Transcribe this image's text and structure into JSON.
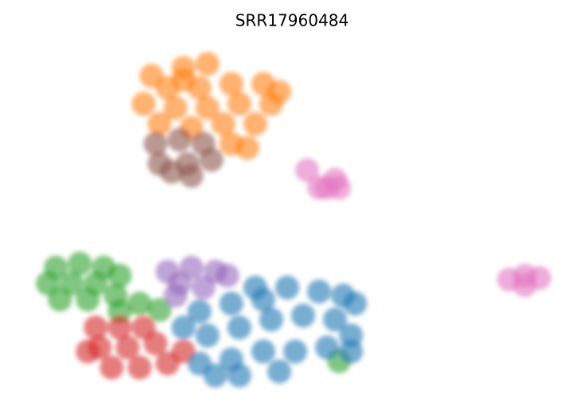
{
  "chart_data": {
    "type": "scatter",
    "title": "SRR17960484",
    "xlim": [
      4,
      70
    ],
    "ylim": [
      2.7,
      45.7
    ],
    "series": [
      {
        "color": "#ff7f0e",
        "x": [
          19,
          23,
          26,
          21,
          25,
          29,
          33,
          35,
          18,
          22,
          26,
          30,
          34,
          20,
          24,
          28,
          32,
          29,
          31,
          23
        ],
        "values": [
          42.2,
          43.2,
          43.7,
          40.7,
          40.7,
          41.2,
          41.2,
          40.2,
          38.7,
          38.2,
          38.2,
          38.7,
          38.7,
          36.2,
          35.7,
          36.2,
          36.2,
          33.7,
          33.2,
          41.7
        ]
      },
      {
        "color": "#8c564b",
        "x": [
          19.5,
          22.5,
          25.5,
          20,
          23.5,
          26.5,
          24,
          21.5
        ],
        "values": [
          33.7,
          34.2,
          33.7,
          31.2,
          31.2,
          31.7,
          29.7,
          30.2
        ]
      },
      {
        "color": "#e377c2",
        "x": [
          38.5,
          41,
          42.5,
          42,
          40,
          63.8,
          65.8,
          67.6,
          65.8
        ],
        "values": [
          30.4,
          28.2,
          28.2,
          29.2,
          28.2,
          16.7,
          17.2,
          16.9,
          16
        ]
      },
      {
        "color": "#2ca02c",
        "x": [
          7,
          10,
          13,
          6,
          9,
          12,
          15,
          7.5,
          11,
          14.5,
          17.5,
          20,
          15,
          42.5
        ],
        "values": [
          18.2,
          18.7,
          18.2,
          16.2,
          16.2,
          16.2,
          17.2,
          14.2,
          14.2,
          14.7,
          13.7,
          12.9,
          12.7,
          6.5
        ]
      },
      {
        "color": "#9467bd",
        "x": [
          21,
          24,
          27,
          28.5,
          22.5,
          25.5,
          22
        ],
        "values": [
          17.7,
          18.2,
          17.7,
          17.2,
          16.2,
          15.7,
          14.7
        ]
      },
      {
        "color": "#d62728",
        "x": [
          12,
          15,
          18,
          12.5,
          16,
          19.5,
          14,
          17.5,
          21,
          23,
          11
        ],
        "values": [
          10.7,
          10.7,
          10.7,
          8.2,
          8.2,
          8.7,
          5.7,
          5.7,
          6.2,
          7.7,
          7.7
        ]
      },
      {
        "color": "#1f77b4",
        "x": [
          25,
          29,
          33,
          36,
          40,
          43,
          44.5,
          26,
          30,
          34,
          38,
          42,
          44,
          25,
          29,
          33,
          37,
          41,
          30,
          35,
          23,
          27,
          44,
          32
        ],
        "values": [
          12.7,
          13.7,
          14.2,
          15.7,
          15.2,
          14.7,
          13.7,
          9.7,
          10.7,
          11.7,
          12.2,
          11.7,
          9.7,
          6.2,
          6.7,
          7.7,
          7.7,
          8.2,
          4.7,
          5.2,
          10.7,
          4.7,
          7.7,
          15.7
        ]
      }
    ]
  }
}
